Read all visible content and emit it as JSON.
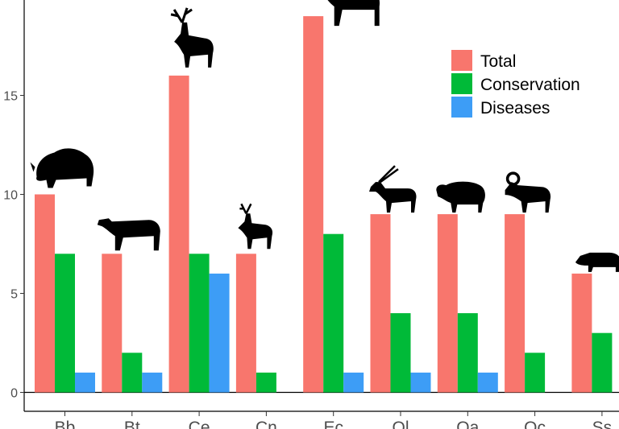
{
  "chart_data": {
    "type": "bar",
    "categories": [
      "Bb",
      "Bt",
      "Ce",
      "Cn",
      "Ec",
      "Ol",
      "Oa",
      "Oc",
      "Ss"
    ],
    "series": [
      {
        "name": "Total",
        "color": "#f8766d",
        "values": [
          10,
          7,
          16,
          7,
          19,
          9,
          9,
          9,
          6
        ]
      },
      {
        "name": "Conservation",
        "color": "#00ba38",
        "values": [
          7,
          2,
          7,
          1,
          8,
          4,
          4,
          2,
          3
        ]
      },
      {
        "name": "Diseases",
        "color": "#3d9df6",
        "values": [
          1,
          1,
          6,
          0,
          1,
          1,
          1,
          0,
          0
        ]
      }
    ],
    "y_ticks": [
      0,
      5,
      10,
      15
    ],
    "ylim": [
      -1,
      20
    ],
    "legend_position": "top-right",
    "grid": false,
    "animal_icons": [
      "bison-icon",
      "cattle-icon",
      "red-deer-icon",
      "sika-deer-icon",
      "horse-icon",
      "oryx-icon",
      "sheep-icon",
      "mouflon-icon",
      "boar-icon"
    ]
  }
}
